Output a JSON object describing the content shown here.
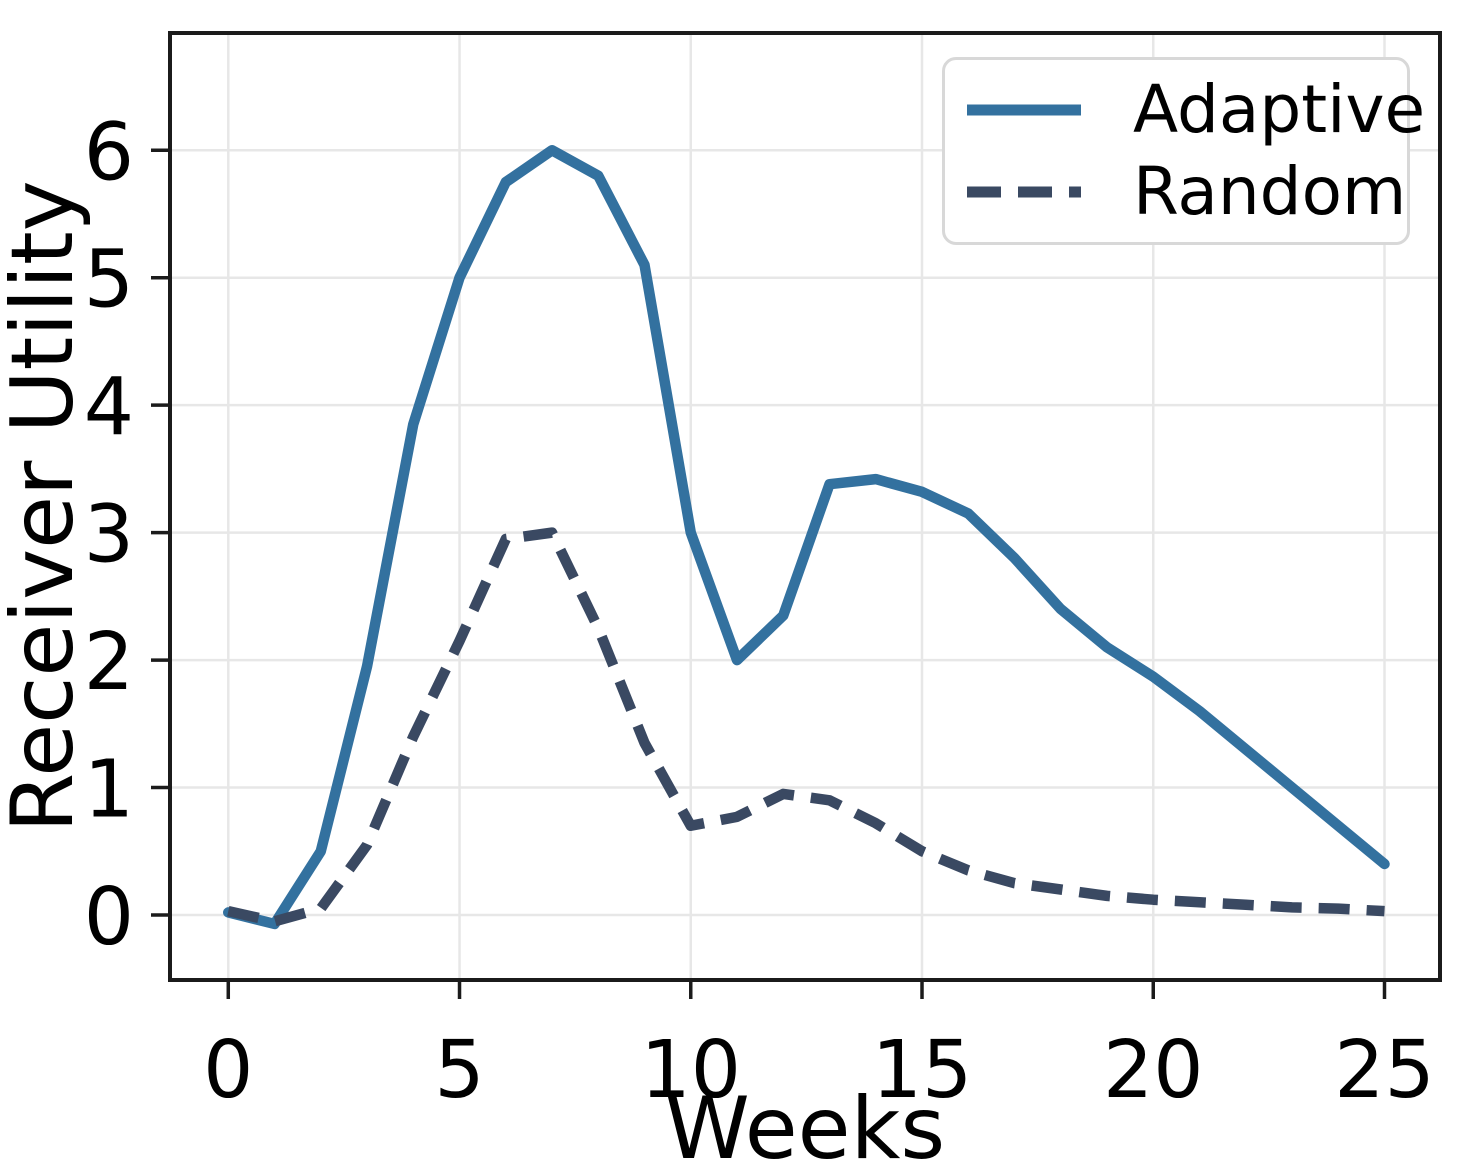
{
  "chart_data": {
    "type": "line",
    "title": "",
    "xlabel": "Weeks",
    "ylabel": "Receiver Utility",
    "x": [
      0,
      1,
      2,
      3,
      4,
      5,
      6,
      7,
      8,
      9,
      10,
      11,
      12,
      13,
      14,
      15,
      16,
      17,
      18,
      19,
      20,
      21,
      22,
      23,
      24,
      25
    ],
    "series": [
      {
        "name": "Adaptive",
        "style": "solid",
        "color": "#33719F",
        "values": [
          0.02,
          -0.07,
          0.5,
          1.95,
          3.85,
          5.0,
          5.75,
          6.0,
          5.8,
          5.1,
          3.0,
          2.0,
          2.35,
          3.38,
          3.42,
          3.32,
          3.15,
          2.8,
          2.4,
          2.1,
          1.87,
          1.6,
          1.3,
          1.0,
          0.7,
          0.4
        ]
      },
      {
        "name": "Random",
        "style": "dashed",
        "color": "#3A4962",
        "values": [
          0.03,
          -0.05,
          0.05,
          0.55,
          1.4,
          2.15,
          2.95,
          3.0,
          2.25,
          1.35,
          0.7,
          0.77,
          0.95,
          0.9,
          0.72,
          0.5,
          0.35,
          0.25,
          0.2,
          0.15,
          0.12,
          0.1,
          0.08,
          0.06,
          0.05,
          0.03
        ]
      }
    ],
    "xticks": [
      0,
      5,
      10,
      15,
      20,
      25
    ],
    "yticks": [
      0,
      1,
      2,
      3,
      4,
      5,
      6
    ],
    "xlim": [
      -1.26,
      26.2
    ],
    "ylim": [
      -0.51,
      6.92
    ],
    "grid": true,
    "legend_position": "upper right",
    "colors": {
      "grid": "#E7E7E7",
      "spine": "#1B1B1B",
      "tick": "#1B1B1B",
      "text": "#000000",
      "legend_border": "#D8D8D8"
    }
  }
}
